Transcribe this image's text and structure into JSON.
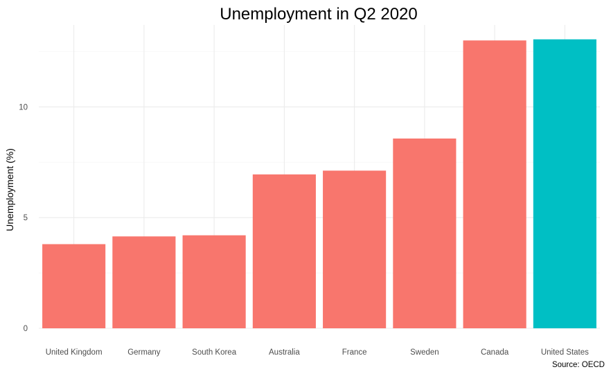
{
  "chart_data": {
    "type": "bar",
    "title": "Unemployment in Q2 2020",
    "xlabel": "",
    "ylabel": "Unemployment (%)",
    "caption": "Source: OECD",
    "categories": [
      "United Kingdom",
      "Germany",
      "South Korea",
      "Australia",
      "France",
      "Sweden",
      "Canada",
      "United States"
    ],
    "values": [
      3.8,
      4.15,
      4.2,
      6.95,
      7.12,
      8.57,
      13.0,
      13.05
    ],
    "highlight": [
      false,
      false,
      false,
      false,
      false,
      false,
      false,
      true
    ],
    "colors": {
      "default": "#F8766D",
      "highlight": "#00BFC4"
    },
    "y_ticks": [
      0,
      5,
      10
    ],
    "ylim": [
      0,
      13.7
    ],
    "grid": true,
    "legend": "none"
  }
}
